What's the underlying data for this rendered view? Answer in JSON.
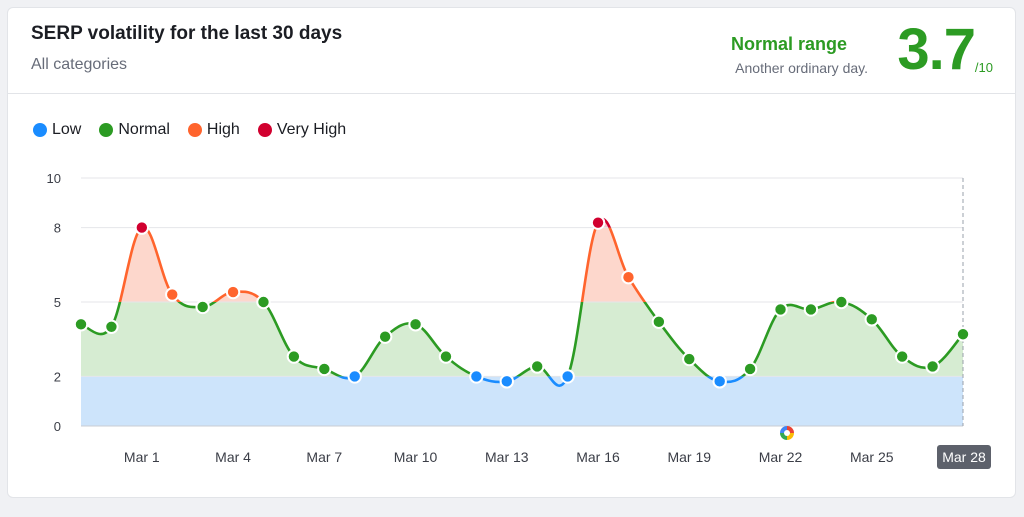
{
  "header": {
    "title": "SERP volatility for the last 30 days",
    "subtitle": "All categories",
    "range_label": "Normal range",
    "range_desc": "Another ordinary day.",
    "score": "3.7",
    "score_max": "/10"
  },
  "legend": [
    {
      "label": "Low",
      "color": "#1a8cff"
    },
    {
      "label": "Normal",
      "color": "#2c9b23"
    },
    {
      "label": "High",
      "color": "#ff642d"
    },
    {
      "label": "Very High",
      "color": "#d1002f"
    }
  ],
  "chart_data": {
    "type": "area",
    "ylim": [
      0,
      10
    ],
    "y_ticks": [
      0,
      2,
      5,
      8,
      10
    ],
    "x_tick_labels": [
      "Mar 1",
      "Mar 4",
      "Mar 7",
      "Mar 10",
      "Mar 13",
      "Mar 16",
      "Mar 19",
      "Mar 22",
      "Mar 25",
      "Mar 28"
    ],
    "x_tick_indices": [
      2,
      5,
      8,
      11,
      14,
      17,
      20,
      23,
      26,
      29
    ],
    "selected_label": "Mar 28",
    "bands": [
      {
        "name": "Low",
        "from": 0,
        "to": 2,
        "color": "#cde4fb"
      },
      {
        "name": "Normal",
        "from": 2,
        "to": 5,
        "color": "#d6ecd2"
      },
      {
        "name": "High",
        "from": 5,
        "to": 8,
        "color": "#fdd7cc"
      },
      {
        "name": "Very High",
        "from": 8,
        "to": 10,
        "color": "#f7c5cc"
      }
    ],
    "series": [
      {
        "values": [
          4.1,
          4.0,
          8.0,
          5.3,
          4.8,
          5.4,
          5.0,
          2.8,
          2.3,
          2.0,
          3.6,
          4.1,
          2.8,
          2.0,
          1.8,
          2.4,
          2.0,
          8.2,
          6.0,
          4.2,
          2.7,
          1.8,
          2.3,
          4.7,
          4.7,
          5.0,
          4.3,
          2.8,
          2.4,
          3.7
        ]
      }
    ],
    "colors": {
      "low": "#1a8cff",
      "normal": "#2c9b23",
      "high": "#ff642d",
      "very_high": "#d1002f"
    }
  }
}
